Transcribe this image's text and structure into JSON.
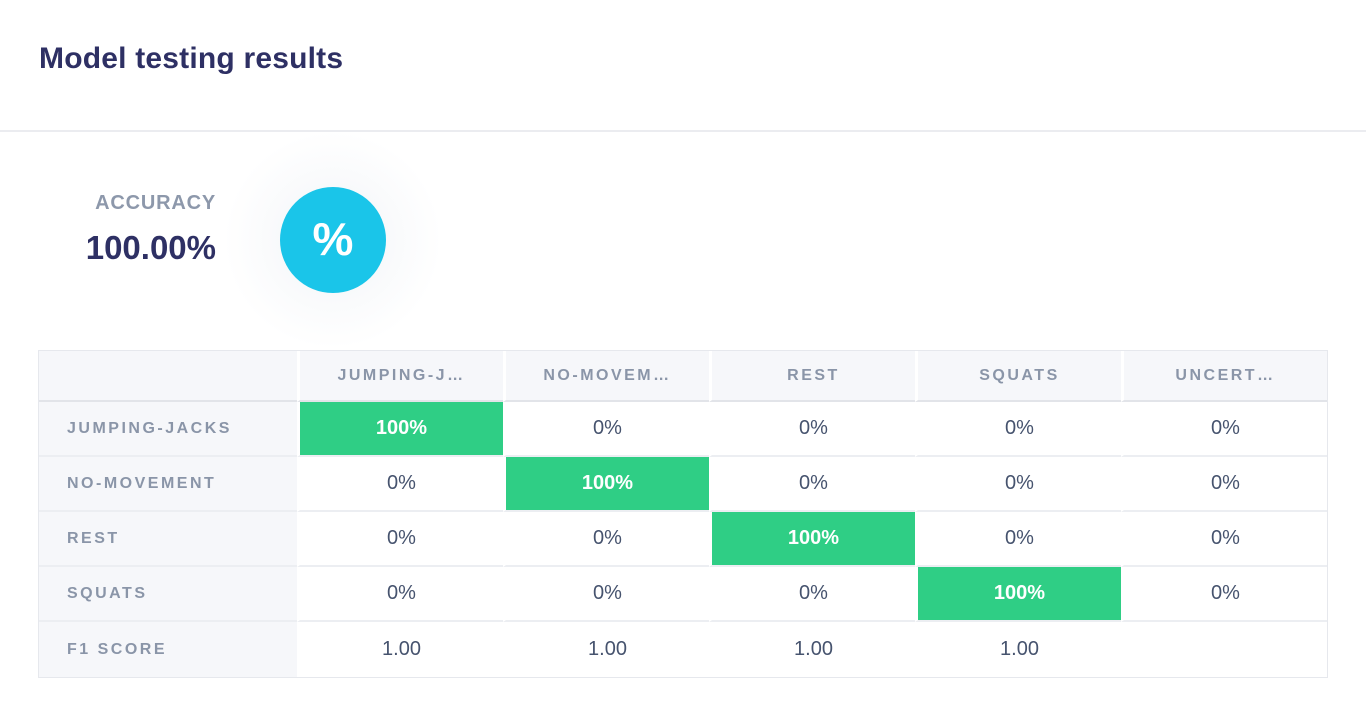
{
  "page": {
    "title": "Model testing results"
  },
  "metric": {
    "label": "ACCURACY",
    "value": "100.00%",
    "icon": "percent-icon",
    "icon_glyph": "%"
  },
  "colors": {
    "accent_cyan": "#1ac5e9",
    "highlight_green": "#2fce85",
    "heading_navy": "#2e3064",
    "value_slate": "#46536e",
    "muted_gray": "#8a95a8"
  },
  "confusion_matrix": {
    "columns": [
      "JUMPING-J…",
      "NO-MOVEM…",
      "REST",
      "SQUATS",
      "UNCERT…"
    ],
    "rows": [
      {
        "label": "JUMPING-JACKS",
        "values": [
          "100%",
          "0%",
          "0%",
          "0%",
          "0%"
        ]
      },
      {
        "label": "NO-MOVEMENT",
        "values": [
          "0%",
          "100%",
          "0%",
          "0%",
          "0%"
        ]
      },
      {
        "label": "REST",
        "values": [
          "0%",
          "0%",
          "100%",
          "0%",
          "0%"
        ]
      },
      {
        "label": "SQUATS",
        "values": [
          "0%",
          "0%",
          "0%",
          "100%",
          "0%"
        ]
      },
      {
        "label": "F1 SCORE",
        "values": [
          "1.00",
          "1.00",
          "1.00",
          "1.00",
          ""
        ]
      }
    ]
  }
}
